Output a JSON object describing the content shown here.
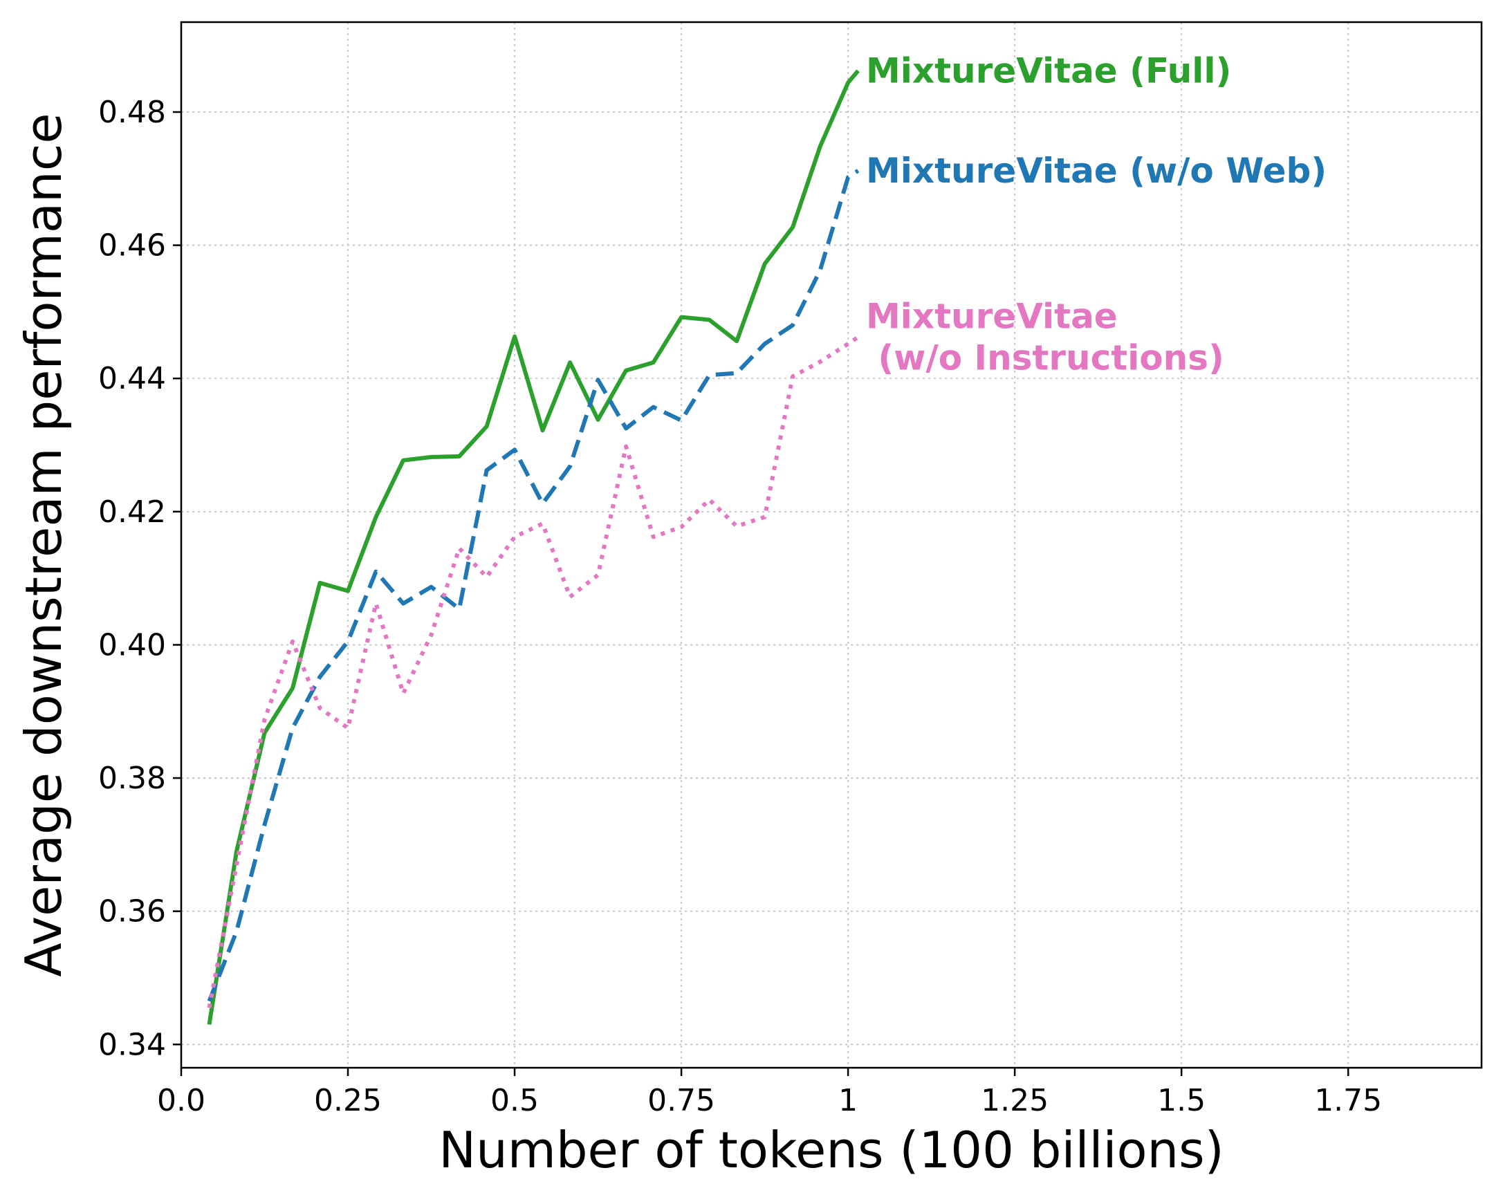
{
  "chart_data": {
    "type": "line",
    "title": "",
    "xlabel": "Number of tokens (100 billions)",
    "ylabel": "Average downstream performance",
    "xlim": [
      0.0,
      1.95
    ],
    "ylim": [
      0.3365,
      0.4935
    ],
    "x_ticks": [
      0.0,
      0.25,
      0.5,
      0.75,
      1.0,
      1.25,
      1.5,
      1.75
    ],
    "x_tick_labels": [
      "0.0",
      "0.25",
      "0.5",
      "0.75",
      "1",
      "1.25",
      "1.5",
      "1.75"
    ],
    "y_ticks": [
      0.34,
      0.36,
      0.38,
      0.4,
      0.42,
      0.44,
      0.46,
      0.48
    ],
    "y_tick_labels": [
      "0.34",
      "0.36",
      "0.38",
      "0.40",
      "0.42",
      "0.44",
      "0.46",
      "0.48"
    ],
    "grid": true,
    "legend": "none",
    "series": [
      {
        "name": "MixtureVitae (Full)",
        "label_lines": [
          "MixtureVitae (Full)"
        ],
        "color": "#2ca02c",
        "style": "solid",
        "x": [
          0.042,
          0.083,
          0.125,
          0.167,
          0.208,
          0.25,
          0.292,
          0.333,
          0.375,
          0.417,
          0.458,
          0.5,
          0.542,
          0.583,
          0.625,
          0.667,
          0.708,
          0.75,
          0.792,
          0.833,
          0.875,
          0.917,
          0.958,
          1.0,
          1.015
        ],
        "y": [
          0.343,
          0.369,
          0.3868,
          0.3935,
          0.4093,
          0.4081,
          0.4192,
          0.4277,
          0.4282,
          0.4283,
          0.4328,
          0.4463,
          0.4322,
          0.4424,
          0.4338,
          0.4412,
          0.4424,
          0.4492,
          0.4488,
          0.4456,
          0.4572,
          0.4627,
          0.4748,
          0.4844,
          0.4862
        ]
      },
      {
        "name": "MixtureVitae (w/o Web)",
        "label_lines": [
          "MixtureVitae (w/o Web)"
        ],
        "color": "#1f77b4",
        "style": "dashed",
        "x": [
          0.042,
          0.083,
          0.125,
          0.167,
          0.208,
          0.25,
          0.292,
          0.333,
          0.375,
          0.417,
          0.458,
          0.5,
          0.542,
          0.583,
          0.625,
          0.667,
          0.708,
          0.75,
          0.792,
          0.833,
          0.875,
          0.917,
          0.958,
          1.0,
          1.015
        ],
        "y": [
          0.3465,
          0.357,
          0.373,
          0.3875,
          0.3952,
          0.4005,
          0.411,
          0.4062,
          0.4087,
          0.4054,
          0.4262,
          0.4293,
          0.4212,
          0.4268,
          0.4398,
          0.4325,
          0.4357,
          0.4337,
          0.4405,
          0.4408,
          0.4452,
          0.448,
          0.4562,
          0.4702,
          0.4712
        ]
      },
      {
        "name": "MixtureVitae (w/o Instructions)",
        "label_lines": [
          "MixtureVitae",
          " (w/o Instructions)"
        ],
        "color": "#e377c2",
        "style": "dotted",
        "x": [
          0.042,
          0.083,
          0.125,
          0.167,
          0.208,
          0.25,
          0.292,
          0.333,
          0.375,
          0.417,
          0.458,
          0.5,
          0.542,
          0.583,
          0.625,
          0.667,
          0.708,
          0.75,
          0.792,
          0.833,
          0.875,
          0.917,
          0.958,
          1.0,
          1.015
        ],
        "y": [
          0.3455,
          0.367,
          0.3888,
          0.4005,
          0.3905,
          0.3875,
          0.4062,
          0.3927,
          0.4015,
          0.4145,
          0.4102,
          0.4162,
          0.4182,
          0.4072,
          0.4105,
          0.4298,
          0.4162,
          0.4177,
          0.4218,
          0.4178,
          0.4192,
          0.4403,
          0.4425,
          0.4452,
          0.4462
        ]
      }
    ]
  }
}
